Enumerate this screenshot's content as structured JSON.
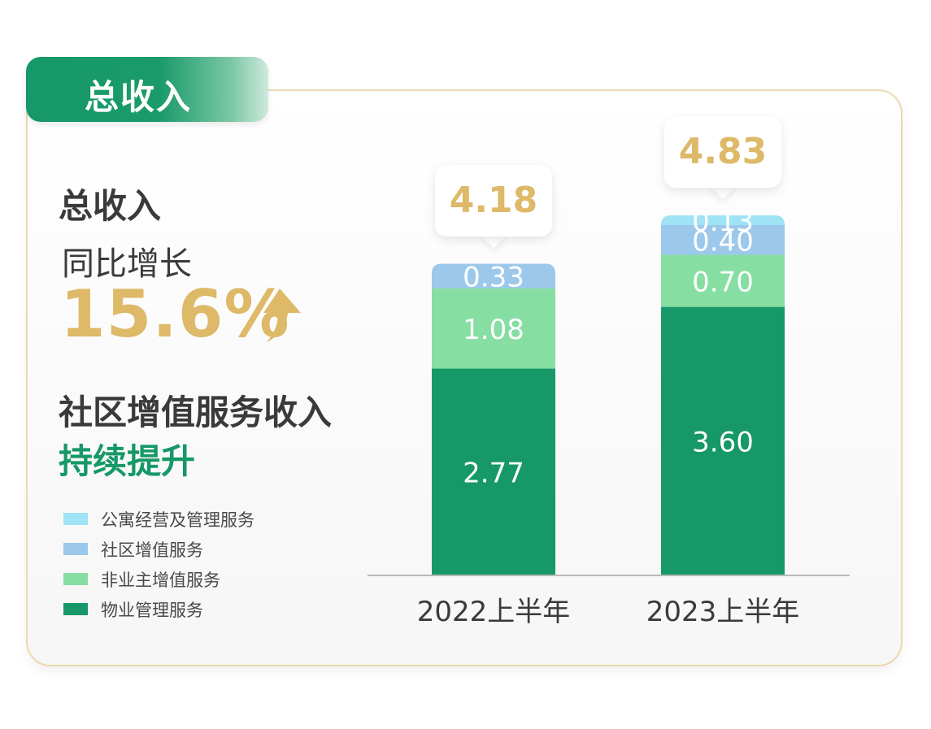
{
  "header": {
    "tag_label": "总收入"
  },
  "summary": {
    "title": "总收入",
    "subtitle": "同比增长",
    "growth": "15.6%",
    "headline": "社区增值服务收入",
    "headline_accent": "持续提升"
  },
  "colors": {
    "accent_green": "#169868",
    "gold": "#ddb968",
    "apartment": "#9fe3f4",
    "community": "#9cc8eb",
    "non_owner": "#86dea3",
    "property": "#169868"
  },
  "chart_data": {
    "type": "bar",
    "stacked": true,
    "categories": [
      "2022上半年",
      "2023上半年"
    ],
    "series": [
      {
        "name": "物业管理服务",
        "values": [
          2.77,
          3.6
        ],
        "color": "#169868"
      },
      {
        "name": "非业主增值服务",
        "values": [
          1.08,
          0.7
        ],
        "color": "#86dea3"
      },
      {
        "name": "社区增值服务",
        "values": [
          0.33,
          0.4
        ],
        "color": "#9cc8eb"
      },
      {
        "name": "公寓经营及管理服务",
        "values": [
          null,
          0.13
        ],
        "color": "#9fe3f4"
      }
    ],
    "totals": [
      "4.18",
      "4.83"
    ],
    "value_labels": [
      [
        "2.77",
        "1.08",
        "0.33",
        ""
      ],
      [
        "3.60",
        "0.70",
        "0.40",
        "0.13"
      ]
    ],
    "legend": [
      "公寓经营及管理服务",
      "社区增值服务",
      "非业主增值服务",
      "物业管理服务"
    ],
    "legend_position": "left",
    "grid": false
  }
}
